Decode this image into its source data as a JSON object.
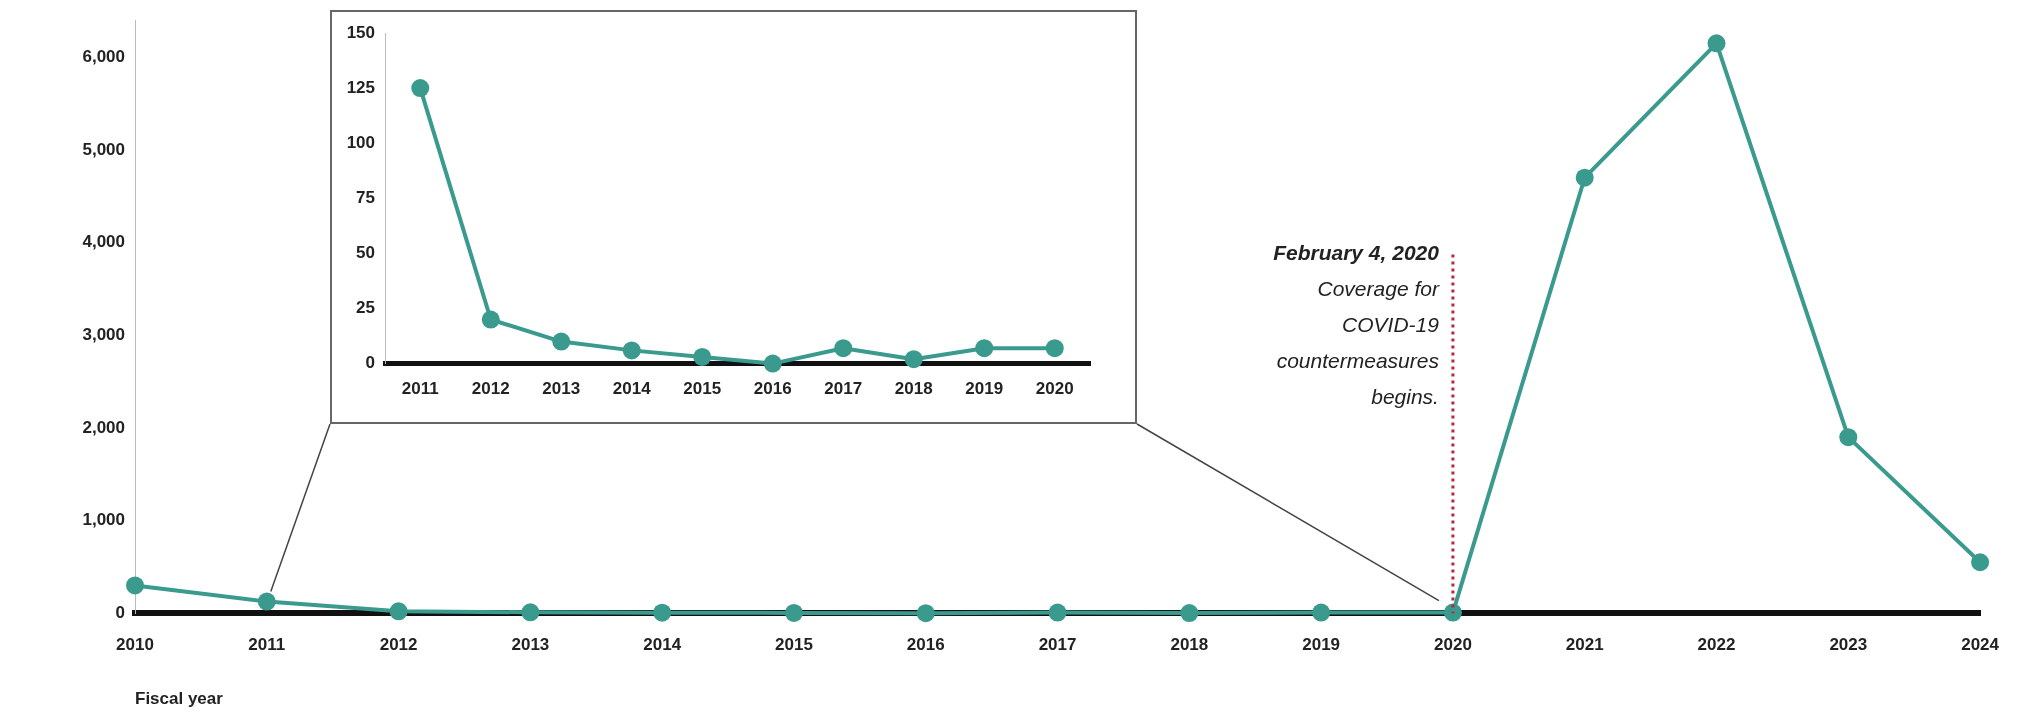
{
  "chart_data": [
    {
      "type": "line",
      "xlabel": "Fiscal year",
      "categories": [
        "2010",
        "2011",
        "2012",
        "2013",
        "2014",
        "2015",
        "2016",
        "2017",
        "2018",
        "2019",
        "2020",
        "2021",
        "2022",
        "2023",
        "2024"
      ],
      "series": [
        {
          "color": "#3a9a8e",
          "values": [
            300,
            125,
            20,
            10,
            6,
            3,
            0,
            7,
            2,
            7,
            7,
            4700,
            6150,
            1900,
            550
          ]
        }
      ],
      "ylim": [
        0,
        6400
      ],
      "yticks": [
        {
          "value": 0,
          "label": "0"
        },
        {
          "value": 1000,
          "label": "1,000"
        },
        {
          "value": 2000,
          "label": "2,000"
        },
        {
          "value": 3000,
          "label": "3,000"
        },
        {
          "value": 4000,
          "label": "4,000"
        },
        {
          "value": 5000,
          "label": "5,000"
        },
        {
          "value": 6000,
          "label": "6,000"
        }
      ],
      "marker": "circle",
      "ref_lines": [
        {
          "axis": "x",
          "value": "2020",
          "label": "February 4, 2020\nCoverage for\nCOVID-19\ncountermeasures\nbegins.",
          "color": "#b8283c",
          "line_style": "dotted"
        }
      ]
    },
    {
      "type": "line",
      "categories": [
        "2011",
        "2012",
        "2013",
        "2014",
        "2015",
        "2016",
        "2017",
        "2018",
        "2019",
        "2020"
      ],
      "series": [
        {
          "color": "#3a9a8e",
          "values": [
            125,
            20,
            10,
            6,
            3,
            0,
            7,
            2,
            7,
            7
          ]
        }
      ],
      "ylim": [
        0,
        150
      ],
      "yticks": [
        0,
        25,
        50,
        75,
        100,
        125,
        150
      ],
      "marker": "circle"
    }
  ]
}
